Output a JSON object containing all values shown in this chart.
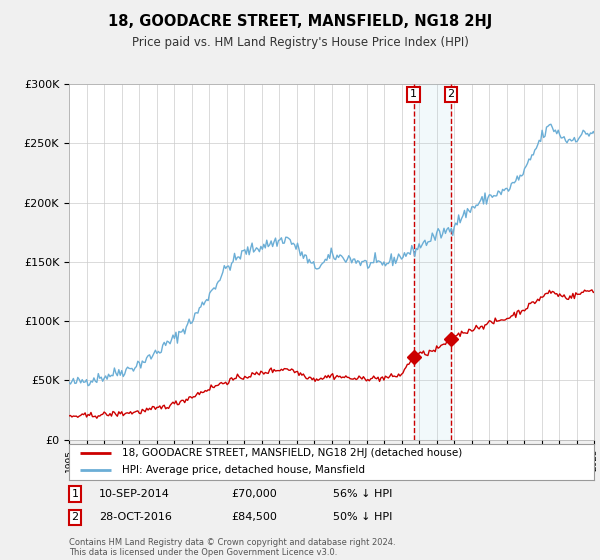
{
  "title": "18, GOODACRE STREET, MANSFIELD, NG18 2HJ",
  "subtitle": "Price paid vs. HM Land Registry's House Price Index (HPI)",
  "legend_line1": "18, GOODACRE STREET, MANSFIELD, NG18 2HJ (detached house)",
  "legend_line2": "HPI: Average price, detached house, Mansfield",
  "footnote": "Contains HM Land Registry data © Crown copyright and database right 2024.\nThis data is licensed under the Open Government Licence v3.0.",
  "sale1_date": "10-SEP-2014",
  "sale1_price": "£70,000",
  "sale1_pct": "56% ↓ HPI",
  "sale2_date": "28-OCT-2016",
  "sale2_price": "£84,500",
  "sale2_pct": "50% ↓ HPI",
  "hpi_color": "#6baed6",
  "sale_color": "#cc0000",
  "background_color": "#f0f0f0",
  "plot_background": "#ffffff",
  "ylim": [
    0,
    300000
  ],
  "yticks": [
    0,
    50000,
    100000,
    150000,
    200000,
    250000,
    300000
  ],
  "marker1_x": 2014.69,
  "marker1_y": 70000,
  "marker2_x": 2016.83,
  "marker2_y": 84500,
  "xmin": 1995,
  "xmax": 2025
}
